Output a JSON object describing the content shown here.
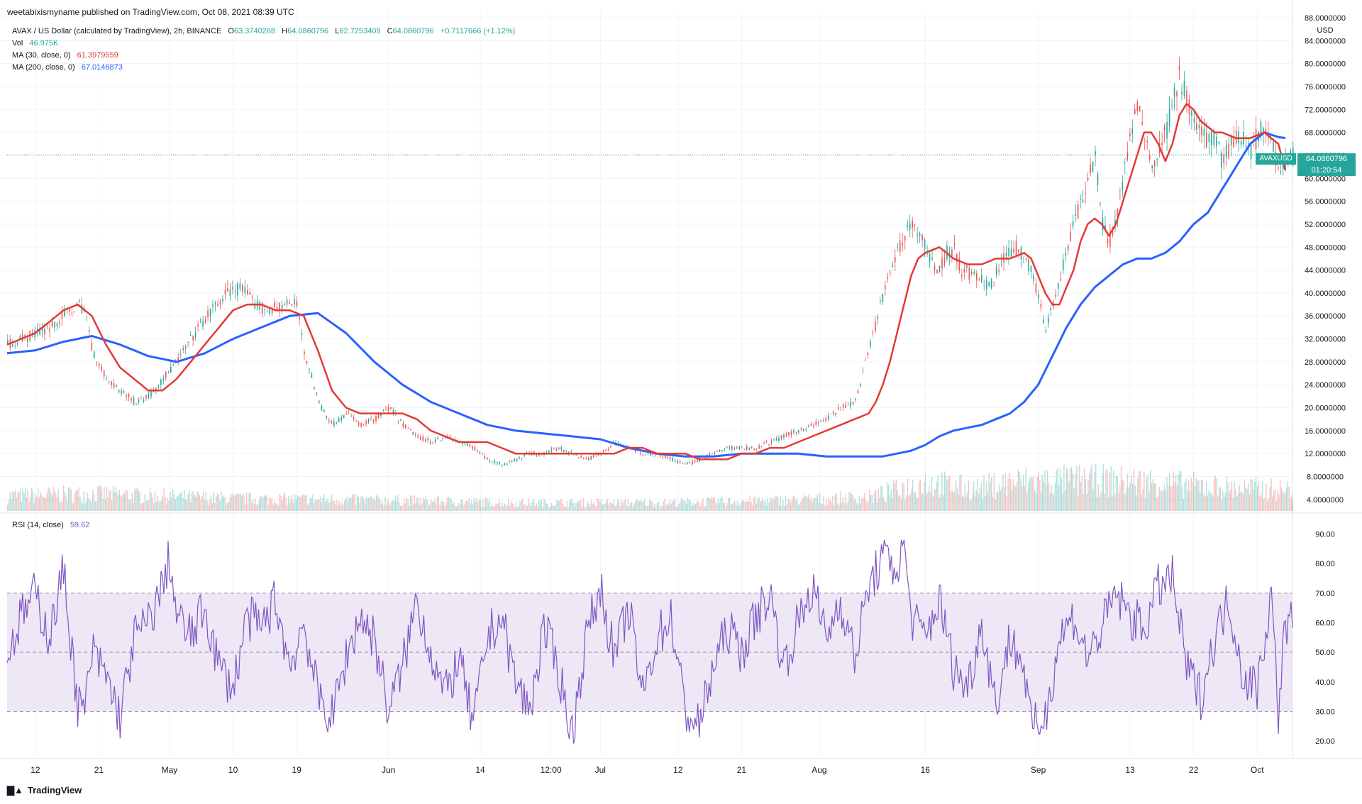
{
  "header": {
    "publisher": "weetabixismyname published on TradingView.com, Oct 08, 2021 08:39 UTC"
  },
  "legend": {
    "symbol_line": "AVAX / US Dollar (calculated by TradingView), 2h, BINANCE",
    "ohlc": {
      "o_label": "O",
      "o": "63.3740268",
      "h_label": "H",
      "h": "64.0860796",
      "l_label": "L",
      "l": "62.7253409",
      "c_label": "C",
      "c": "64.0860796",
      "change": "+0.7117666 (+1.12%)"
    },
    "vol_label": "Vol",
    "vol_value": "46.975K",
    "ma30_label": "MA (30, close, 0)",
    "ma30_value": "61.3979559",
    "ma200_label": "MA (200, close, 0)",
    "ma200_value": "67.0146873",
    "rsi_label": "RSI (14, close)",
    "rsi_value": "59.62"
  },
  "price_tag": {
    "symbol": "AVAXUSD",
    "price": "64.0860796",
    "countdown": "01:20:54"
  },
  "footer": {
    "brand": "TradingView"
  },
  "colors": {
    "up": "#26a69a",
    "down": "#ef5350",
    "ma30": "#e53935",
    "ma200": "#2962ff",
    "rsi": "#7e57c2",
    "rsi_band": "#ede7f6"
  },
  "chart_data": [
    {
      "type": "line",
      "panel": "price",
      "unit_label": "USD",
      "y_ticks": [
        "4.0000000",
        "8.0000000",
        "12.0000000",
        "16.0000000",
        "20.0000000",
        "24.0000000",
        "28.0000000",
        "32.0000000",
        "36.0000000",
        "40.0000000",
        "44.0000000",
        "48.0000000",
        "52.0000000",
        "56.0000000",
        "60.0000000",
        "64.0000000",
        "68.0000000",
        "72.0000000",
        "76.0000000",
        "80.0000000",
        "84.0000000",
        "88.0000000"
      ],
      "ylim": [
        2.0,
        88.0
      ],
      "x_ticks": [
        "12",
        "21",
        "May",
        "10",
        "19",
        "Jun",
        "14",
        "12:00",
        "Jul",
        "12",
        "21",
        "Aug",
        "16",
        "Sep",
        "13",
        "22",
        "Oct"
      ],
      "x_tick_day": [
        12,
        21,
        31,
        40,
        49,
        62,
        75,
        85,
        92,
        103,
        112,
        123,
        138,
        154,
        167,
        176,
        185
      ],
      "day_range": [
        8,
        190
      ],
      "series": [
        {
          "name": "Price",
          "x": [
            8,
            10,
            12,
            14,
            16,
            18,
            19,
            20,
            22,
            24,
            26,
            28,
            30,
            32,
            33,
            35,
            37,
            39,
            41,
            43,
            45,
            47,
            49,
            50,
            52,
            54,
            56,
            58,
            60,
            62,
            64,
            66,
            68,
            70,
            72,
            74,
            76,
            78,
            80,
            82,
            84,
            86,
            88,
            90,
            92,
            94,
            96,
            98,
            100,
            102,
            104,
            106,
            108,
            110,
            112,
            114,
            116,
            118,
            120,
            122,
            124,
            126,
            128,
            130,
            132,
            134,
            136,
            137,
            138,
            139,
            140,
            141,
            142,
            143,
            145,
            147,
            149,
            151,
            153,
            155,
            156,
            157,
            158,
            160,
            162,
            163,
            164,
            165,
            166,
            167,
            168,
            170,
            172,
            173,
            174,
            175,
            176,
            177,
            178,
            179,
            180,
            182,
            184,
            186,
            187,
            188,
            189
          ],
          "values": [
            31,
            32,
            33,
            34,
            36,
            38,
            37,
            30,
            25,
            23,
            21,
            22,
            25,
            28,
            30,
            34,
            37,
            40,
            41,
            38,
            37,
            38,
            38,
            30,
            21,
            17,
            19,
            17,
            18,
            20,
            17,
            15,
            14,
            15,
            14,
            13,
            11,
            10,
            11,
            12,
            12,
            13,
            12,
            11,
            12,
            14,
            13,
            12,
            12,
            11,
            10,
            11,
            12,
            13,
            13,
            13,
            14,
            15,
            16,
            17,
            18,
            20,
            21,
            30,
            40,
            47,
            53,
            50,
            48,
            45,
            44,
            47,
            48,
            44,
            43,
            41,
            46,
            48,
            44,
            34,
            38,
            42,
            48,
            56,
            64,
            52,
            49,
            53,
            60,
            67,
            74,
            62,
            68,
            74,
            78,
            73,
            70,
            68,
            66,
            67,
            63,
            68,
            65,
            70,
            66,
            62,
            64.09
          ]
        },
        {
          "name": "MA (30, close, 0)",
          "x": [
            8,
            10,
            12,
            14,
            16,
            18,
            20,
            22,
            24,
            26,
            28,
            30,
            32,
            34,
            36,
            38,
            40,
            42,
            44,
            46,
            48,
            50,
            52,
            54,
            56,
            58,
            60,
            62,
            64,
            66,
            68,
            70,
            72,
            74,
            76,
            78,
            80,
            82,
            84,
            86,
            88,
            90,
            92,
            94,
            96,
            98,
            100,
            102,
            104,
            106,
            108,
            110,
            112,
            114,
            116,
            118,
            120,
            122,
            124,
            126,
            128,
            130,
            131,
            132,
            133,
            134,
            135,
            136,
            137,
            138,
            140,
            142,
            144,
            146,
            148,
            150,
            152,
            153,
            154,
            155,
            156,
            157,
            158,
            159,
            160,
            161,
            162,
            163,
            164,
            165,
            166,
            167,
            168,
            169,
            170,
            171,
            172,
            173,
            174,
            175,
            176,
            177,
            178,
            179,
            180,
            182,
            184,
            186,
            188,
            189
          ],
          "values": [
            31,
            32,
            33,
            35,
            37,
            38,
            36,
            31,
            27,
            25,
            23,
            23,
            25,
            28,
            31,
            34,
            37,
            38,
            38,
            37,
            37,
            36,
            30,
            23,
            20,
            19,
            19,
            19,
            19,
            18,
            16,
            15,
            14,
            14,
            14,
            13,
            12,
            12,
            12,
            12,
            12,
            12,
            12,
            12,
            13,
            13,
            12,
            12,
            12,
            11,
            11,
            11,
            12,
            12,
            13,
            13,
            14,
            15,
            16,
            17,
            18,
            19,
            21,
            24,
            28,
            33,
            38,
            43,
            46,
            47,
            48,
            46,
            45,
            45,
            46,
            46,
            47,
            46,
            43,
            40,
            38,
            38,
            41,
            44,
            49,
            52,
            53,
            52,
            50,
            52,
            56,
            60,
            64,
            68,
            68,
            66,
            63,
            66,
            71,
            73,
            72,
            70,
            69,
            68,
            68,
            67,
            67,
            68,
            66,
            61.4
          ]
        },
        {
          "name": "MA (200, close, 0)",
          "x": [
            8,
            12,
            16,
            20,
            24,
            28,
            32,
            36,
            40,
            44,
            48,
            52,
            56,
            60,
            64,
            68,
            72,
            76,
            80,
            84,
            88,
            92,
            96,
            100,
            104,
            108,
            112,
            116,
            120,
            124,
            128,
            130,
            132,
            134,
            136,
            138,
            140,
            142,
            144,
            146,
            148,
            150,
            152,
            154,
            156,
            158,
            160,
            162,
            164,
            166,
            168,
            170,
            172,
            174,
            176,
            178,
            180,
            182,
            184,
            186,
            188,
            189
          ],
          "values": [
            29.5,
            30,
            31.5,
            32.5,
            31,
            29,
            28,
            29.5,
            32,
            34,
            36,
            36.5,
            33,
            28,
            24,
            21,
            19,
            17,
            16,
            15.5,
            15,
            14.5,
            13,
            12,
            11.5,
            11.5,
            12,
            12,
            12,
            11.5,
            11.5,
            11.5,
            11.5,
            12,
            12.5,
            13.5,
            15,
            16,
            16.5,
            17,
            18,
            19,
            21,
            24,
            29,
            34,
            38,
            41,
            43,
            45,
            46,
            46,
            47,
            49,
            52,
            54,
            58,
            62,
            66,
            68,
            67.2,
            67.01
          ]
        }
      ]
    },
    {
      "type": "bar",
      "panel": "volume",
      "name": "Vol",
      "day_range": [
        8,
        190
      ],
      "level_x": [
        8,
        20,
        40,
        60,
        80,
        100,
        120,
        130,
        138,
        145,
        150,
        160,
        170,
        180,
        190
      ],
      "level_values": [
        0.22,
        0.25,
        0.18,
        0.16,
        0.12,
        0.12,
        0.16,
        0.2,
        0.42,
        0.32,
        0.42,
        0.45,
        0.42,
        0.34,
        0.3
      ]
    },
    {
      "type": "line",
      "panel": "rsi",
      "name": "RSI (14, close)",
      "y_ticks": [
        "20.00",
        "30.00",
        "40.00",
        "50.00",
        "60.00",
        "70.00",
        "80.00",
        "90.00"
      ],
      "ylim": [
        15,
        93
      ],
      "bands": [
        30,
        50,
        70
      ],
      "day_range": [
        8,
        190
      ],
      "anchor_x": [
        8,
        10,
        12,
        14,
        16,
        18,
        19,
        20,
        22,
        24,
        26,
        28,
        30,
        31,
        32,
        34,
        36,
        38,
        40,
        42,
        44,
        46,
        48,
        50,
        52,
        54,
        56,
        58,
        60,
        62,
        64,
        66,
        68,
        70,
        72,
        74,
        76,
        78,
        80,
        82,
        84,
        86,
        88,
        90,
        92,
        94,
        96,
        98,
        100,
        102,
        104,
        106,
        108,
        110,
        112,
        114,
        116,
        118,
        120,
        122,
        124,
        126,
        128,
        130,
        132,
        134,
        135,
        136,
        138,
        140,
        142,
        144,
        146,
        148,
        150,
        152,
        153,
        155,
        157,
        159,
        161,
        163,
        165,
        167,
        169,
        171,
        173,
        175,
        177,
        179,
        181,
        183,
        185,
        187,
        188,
        189
      ],
      "anchor_values": [
        48,
        62,
        70,
        55,
        78,
        32,
        30,
        50,
        42,
        28,
        55,
        60,
        72,
        82,
        62,
        55,
        65,
        45,
        38,
        62,
        58,
        68,
        45,
        60,
        35,
        28,
        48,
        62,
        55,
        30,
        45,
        68,
        50,
        35,
        48,
        25,
        55,
        62,
        40,
        30,
        58,
        45,
        22,
        55,
        72,
        48,
        65,
        35,
        55,
        62,
        30,
        25,
        45,
        58,
        50,
        62,
        70,
        45,
        60,
        72,
        55,
        68,
        48,
        72,
        82,
        78,
        88,
        62,
        55,
        68,
        45,
        38,
        60,
        32,
        55,
        45,
        24,
        28,
        55,
        62,
        48,
        58,
        70,
        62,
        58,
        72,
        75,
        45,
        35,
        55,
        68,
        42,
        38,
        70,
        30,
        60
      ]
    }
  ]
}
